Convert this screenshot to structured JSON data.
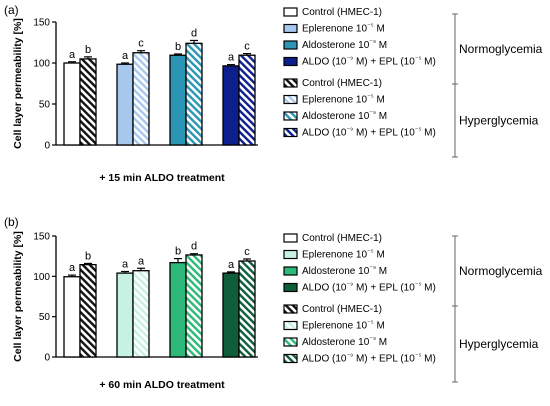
{
  "chart_data": [
    {
      "type": "bar",
      "panel_label": "(a)",
      "ylabel": "Cell layer permeability [%]",
      "xlabel": "+ 15 min ALDO treatment",
      "ylim": [
        0,
        150
      ],
      "yticks": [
        "0",
        "50",
        "100",
        "150"
      ],
      "categories": [
        "Control (HMEC-1)",
        "Eplerenone 10⁻⁵ M",
        "Aldosterone 10⁻⁹ M",
        "ALDO (10⁻⁹ M) + EPL (10⁻⁵ M)"
      ],
      "series": [
        {
          "condition": "Normoglycemia",
          "values": [
            100,
            98.5,
            109.5,
            96.5
          ],
          "errors": [
            1.5,
            1.5,
            1.5,
            1.5
          ],
          "letters": [
            "a",
            "a",
            "b",
            "a"
          ]
        },
        {
          "condition": "Hyperglycemia",
          "values": [
            105,
            112.5,
            124,
            109.5
          ],
          "errors": [
            2.5,
            2.5,
            3.5,
            2
          ],
          "letters": [
            "b",
            "c",
            "d",
            "c"
          ]
        }
      ],
      "colors": [
        "#ffffff",
        "#a6c8ee",
        "#2a95b4",
        "#0d1f8c"
      ],
      "legend_groups": [
        {
          "label": "Normoglycemia",
          "entries": [
            "Control (HMEC-1)",
            "Eplerenone 10⁻⁵ M",
            "Aldosterone 10⁻⁹ M",
            "ALDO (10⁻⁹ M) + EPL (10⁻⁵ M)"
          ]
        },
        {
          "label": "Hyperglycemia",
          "entries": [
            "Control (HMEC-1)",
            "Eplerenone 10⁻⁵ M",
            "Aldosterone 10⁻⁹ M",
            "ALDO (10⁻⁹ M) + EPL (10⁻⁵ M)"
          ]
        }
      ]
    },
    {
      "type": "bar",
      "panel_label": "(b)",
      "ylabel": "Cell layer permeability [%]",
      "xlabel": "+ 60 min ALDO treatment",
      "ylim": [
        0,
        150
      ],
      "yticks": [
        "0",
        "50",
        "100",
        "150"
      ],
      "categories": [
        "Control (HMEC-1)",
        "Eplerenone 10⁻⁵ M",
        "Aldosterone 10⁻⁹ M",
        "ALDO (10⁻⁹ M) + EPL (10⁻⁵ M)"
      ],
      "series": [
        {
          "condition": "Normoglycemia",
          "values": [
            99.5,
            104,
            117,
            104
          ],
          "errors": [
            2,
            2,
            5,
            1.5
          ],
          "letters": [
            "a",
            "a",
            "b",
            "a"
          ]
        },
        {
          "condition": "Hyperglycemia",
          "values": [
            114.5,
            107,
            126.5,
            119
          ],
          "errors": [
            1.5,
            3,
            1.5,
            2.5
          ],
          "letters": [
            "b",
            "a",
            "d",
            "c"
          ]
        }
      ],
      "colors": [
        "#ffffff",
        "#c5f2e2",
        "#2eb97a",
        "#0e5e3a"
      ],
      "legend_groups": [
        {
          "label": "Normoglycemia",
          "entries": [
            "Control (HMEC-1)",
            "Eplerenone 10⁻⁵ M",
            "Aldosterone 10⁻⁹ M",
            "ALDO (10⁻⁹ M) + EPL (10⁻⁵ M)"
          ]
        },
        {
          "label": "Hyperglycemia",
          "entries": [
            "Control (HMEC-1)",
            "Eplerenone 10⁻⁵ M",
            "Aldosterone 10⁻⁹ M",
            "ALDO (10⁻⁹ M) + EPL (10⁻⁵ M)"
          ]
        }
      ]
    }
  ]
}
